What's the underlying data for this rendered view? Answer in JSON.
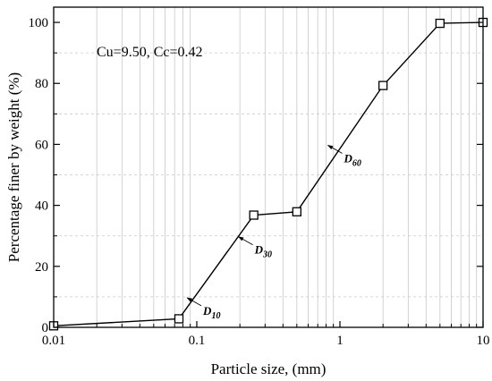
{
  "chart_data": {
    "type": "line",
    "xscale": "log",
    "xlabel": "Particle size, (mm)",
    "ylabel": "Percentage finer by weight (%)",
    "xlim": [
      0.01,
      10
    ],
    "ylim": [
      0,
      105
    ],
    "xticks": [
      0.01,
      0.1,
      1,
      10
    ],
    "xtick_labels": [
      "0.01",
      "0.1",
      "1",
      "10"
    ],
    "yticks": [
      0,
      20,
      40,
      60,
      80,
      100
    ],
    "ytick_labels": [
      "0",
      "20",
      "40",
      "60",
      "80",
      "100"
    ],
    "grid": "vertical log minor lines, horizontal dashed minor lines",
    "series": [
      {
        "marker": "open-square",
        "x": [
          0.01,
          0.075,
          0.25,
          0.5,
          2,
          5,
          10
        ],
        "y": [
          0.5,
          2.8,
          36.8,
          37.9,
          79.3,
          99.7,
          100
        ]
      }
    ],
    "annotations": [
      {
        "label": "Cu=9.50, Cc=0.42"
      },
      {
        "label": "D",
        "subscript": "10",
        "x": 0.083,
        "y": 10
      },
      {
        "label": "D",
        "subscript": "30",
        "x": 0.19,
        "y": 30
      },
      {
        "label": "D",
        "subscript": "60",
        "x": 0.8,
        "y": 60
      }
    ]
  }
}
